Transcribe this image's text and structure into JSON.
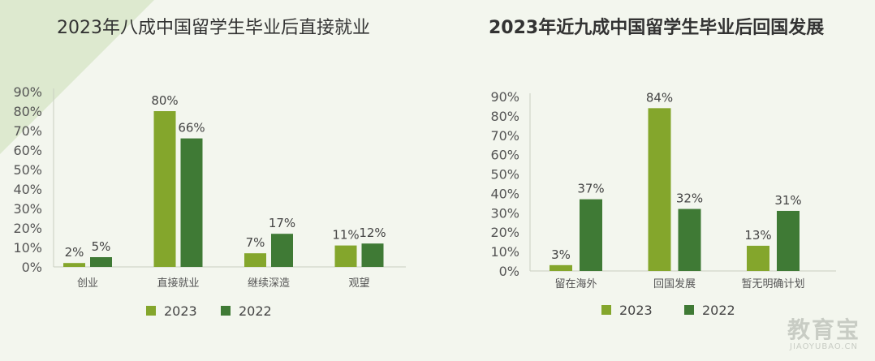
{
  "chart_data": [
    {
      "type": "bar",
      "title": "2023年八成中国留学生毕业后直接就业",
      "categories": [
        "创业",
        "直接就业",
        "继续深造",
        "观望"
      ],
      "series": [
        {
          "name": "2023",
          "values": [
            2,
            80,
            7,
            11
          ]
        },
        {
          "name": "2022",
          "values": [
            5,
            66,
            17,
            12
          ]
        }
      ],
      "value_labels": [
        [
          "2%",
          "80%",
          "7%",
          "11%"
        ],
        [
          "5%",
          "66%",
          "17%",
          "12%"
        ]
      ],
      "yticks": [
        "0%",
        "10%",
        "20%",
        "30%",
        "40%",
        "50%",
        "60%",
        "70%",
        "80%",
        "90%"
      ],
      "ylim": [
        0,
        90
      ],
      "xlabel": "",
      "ylabel": "",
      "legend": "bottom"
    },
    {
      "type": "bar",
      "title": "2023年近九成中国留学生毕业后回国发展",
      "categories": [
        "留在海外",
        "回国发展",
        "暂无明确计划"
      ],
      "series": [
        {
          "name": "2023",
          "values": [
            3,
            84,
            13
          ]
        },
        {
          "name": "2022",
          "values": [
            37,
            32,
            31
          ]
        }
      ],
      "value_labels": [
        [
          "3%",
          "84%",
          "13%"
        ],
        [
          "37%",
          "32%",
          "31%"
        ]
      ],
      "yticks": [
        "0%",
        "10%",
        "20%",
        "30%",
        "40%",
        "50%",
        "60%",
        "70%",
        "80%",
        "90%"
      ],
      "ylim": [
        0,
        90
      ],
      "xlabel": "",
      "ylabel": "",
      "legend": "bottom"
    }
  ],
  "colors": {
    "series_2023": "#84a62c",
    "series_2022": "#3f7a35"
  },
  "watermark": {
    "cn": "教育宝",
    "en": "JIAOYUBAO.CN"
  }
}
